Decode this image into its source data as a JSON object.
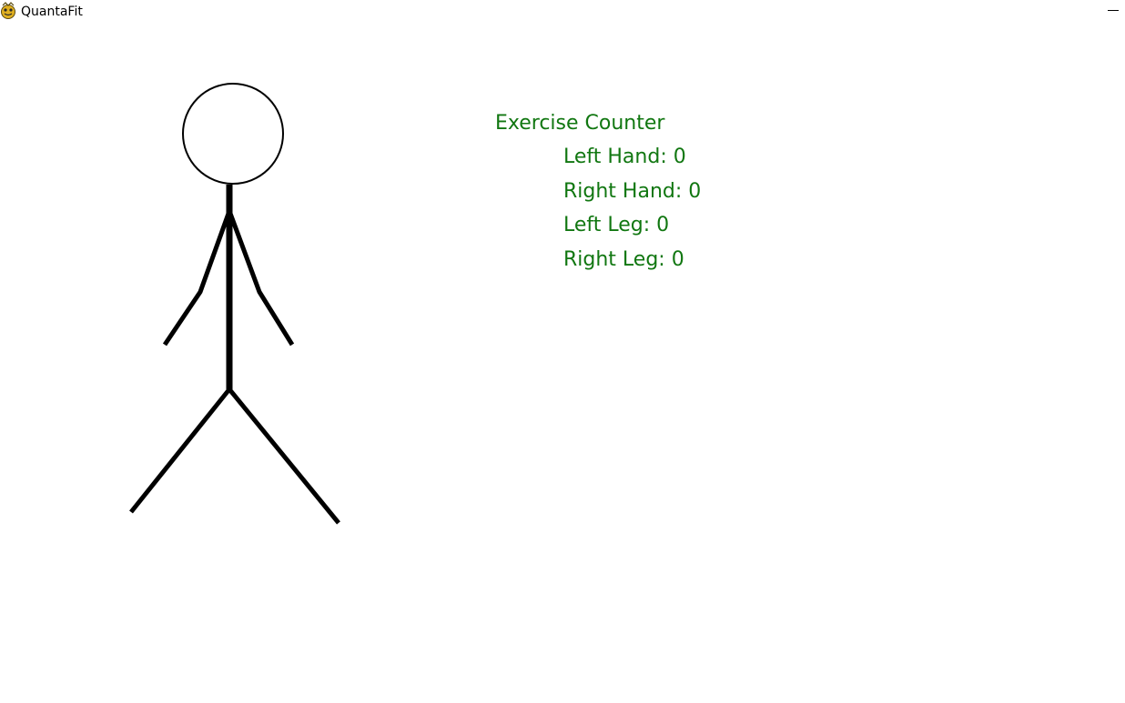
{
  "window": {
    "title": "QuantaFit",
    "icon": "pygame-snake-icon",
    "minimize_icon": "minimize-icon"
  },
  "figure": {
    "icon": "stick-figure"
  },
  "counter": {
    "title": "Exercise Counter",
    "color": "#117711",
    "items": [
      {
        "label": "Left Hand",
        "value": "0"
      },
      {
        "label": "Right Hand",
        "value": "0"
      },
      {
        "label": "Left Leg",
        "value": "0"
      },
      {
        "label": "Right Leg",
        "value": "0"
      }
    ]
  }
}
